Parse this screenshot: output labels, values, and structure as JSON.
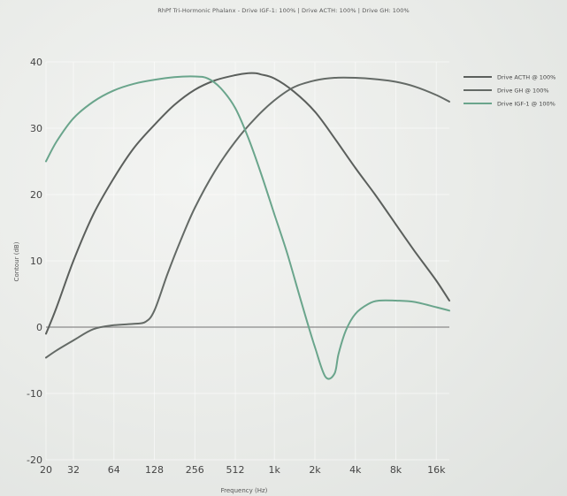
{
  "chart_data": {
    "type": "line",
    "title": "RhPf Tri-Hormonic Phalanx - Drive IGF-1: 100% | Drive ACTH: 100% | Drive GH: 100%",
    "xlabel": "Frequency (Hz)",
    "ylabel": "Contour (dB)",
    "xscale": "log",
    "xlim": [
      20,
      20000
    ],
    "ylim": [
      -20,
      40
    ],
    "xticks": [
      20,
      32,
      64,
      128,
      256,
      512,
      1000,
      2000,
      4000,
      8000,
      16000
    ],
    "xtick_labels": [
      "20",
      "32",
      "64",
      "128",
      "256",
      "512",
      "1k",
      "2k",
      "4k",
      "8k",
      "16k"
    ],
    "yticks": [
      -20,
      -10,
      0,
      10,
      20,
      30,
      40
    ],
    "ytick_labels": [
      "-20",
      "-10",
      "0",
      "10",
      "20",
      "30",
      "40"
    ],
    "grid": true,
    "legend_position": "right",
    "zero_line_color": "#8a8a8a",
    "series": [
      {
        "name": "Drive ACTH @ 100%",
        "color": "#5b5f5c",
        "x": [
          20,
          24,
          32,
          45,
          64,
          90,
          128,
          180,
          256,
          360,
          512,
          640,
          720,
          800,
          1000,
          1400,
          2000,
          2800,
          4000,
          5600,
          8000,
          11000,
          16000,
          20000
        ],
        "y": [
          -1,
          3,
          10,
          17,
          22.5,
          27,
          30.5,
          33.5,
          35.8,
          37.2,
          38,
          38.3,
          38.3,
          38.1,
          37.5,
          35.5,
          32.5,
          28.5,
          24,
          20,
          15.5,
          11.5,
          7,
          4
        ]
      },
      {
        "name": "Drive GH @ 100%",
        "color": "#646a66",
        "x": [
          20,
          24,
          32,
          45,
          64,
          90,
          110,
          128,
          160,
          200,
          256,
          360,
          512,
          720,
          1000,
          1400,
          2000,
          2800,
          4000,
          5600,
          8000,
          11000,
          16000,
          20000
        ],
        "y": [
          -4.6,
          -3.5,
          -2,
          -0.3,
          0.3,
          0.5,
          0.8,
          2.5,
          8,
          13,
          18,
          23.5,
          28,
          31.5,
          34.2,
          36.2,
          37.2,
          37.6,
          37.6,
          37.4,
          37,
          36.3,
          35,
          34
        ]
      },
      {
        "name": "Drive IGF-1 @ 100%",
        "color": "#6aa58c",
        "x": [
          20,
          24,
          32,
          45,
          64,
          90,
          128,
          180,
          256,
          320,
          400,
          512,
          640,
          800,
          1000,
          1250,
          1600,
          2000,
          2400,
          2800,
          3000,
          3400,
          4000,
          5000,
          6000,
          8000,
          11000,
          16000,
          20000
        ],
        "y": [
          25,
          28,
          31.5,
          34,
          35.7,
          36.7,
          37.3,
          37.7,
          37.8,
          37.5,
          36,
          33,
          28.5,
          23,
          17,
          11,
          3.5,
          -3,
          -7.5,
          -7,
          -4,
          -0.5,
          2,
          3.5,
          4,
          4,
          3.8,
          3,
          2.5
        ]
      }
    ]
  }
}
